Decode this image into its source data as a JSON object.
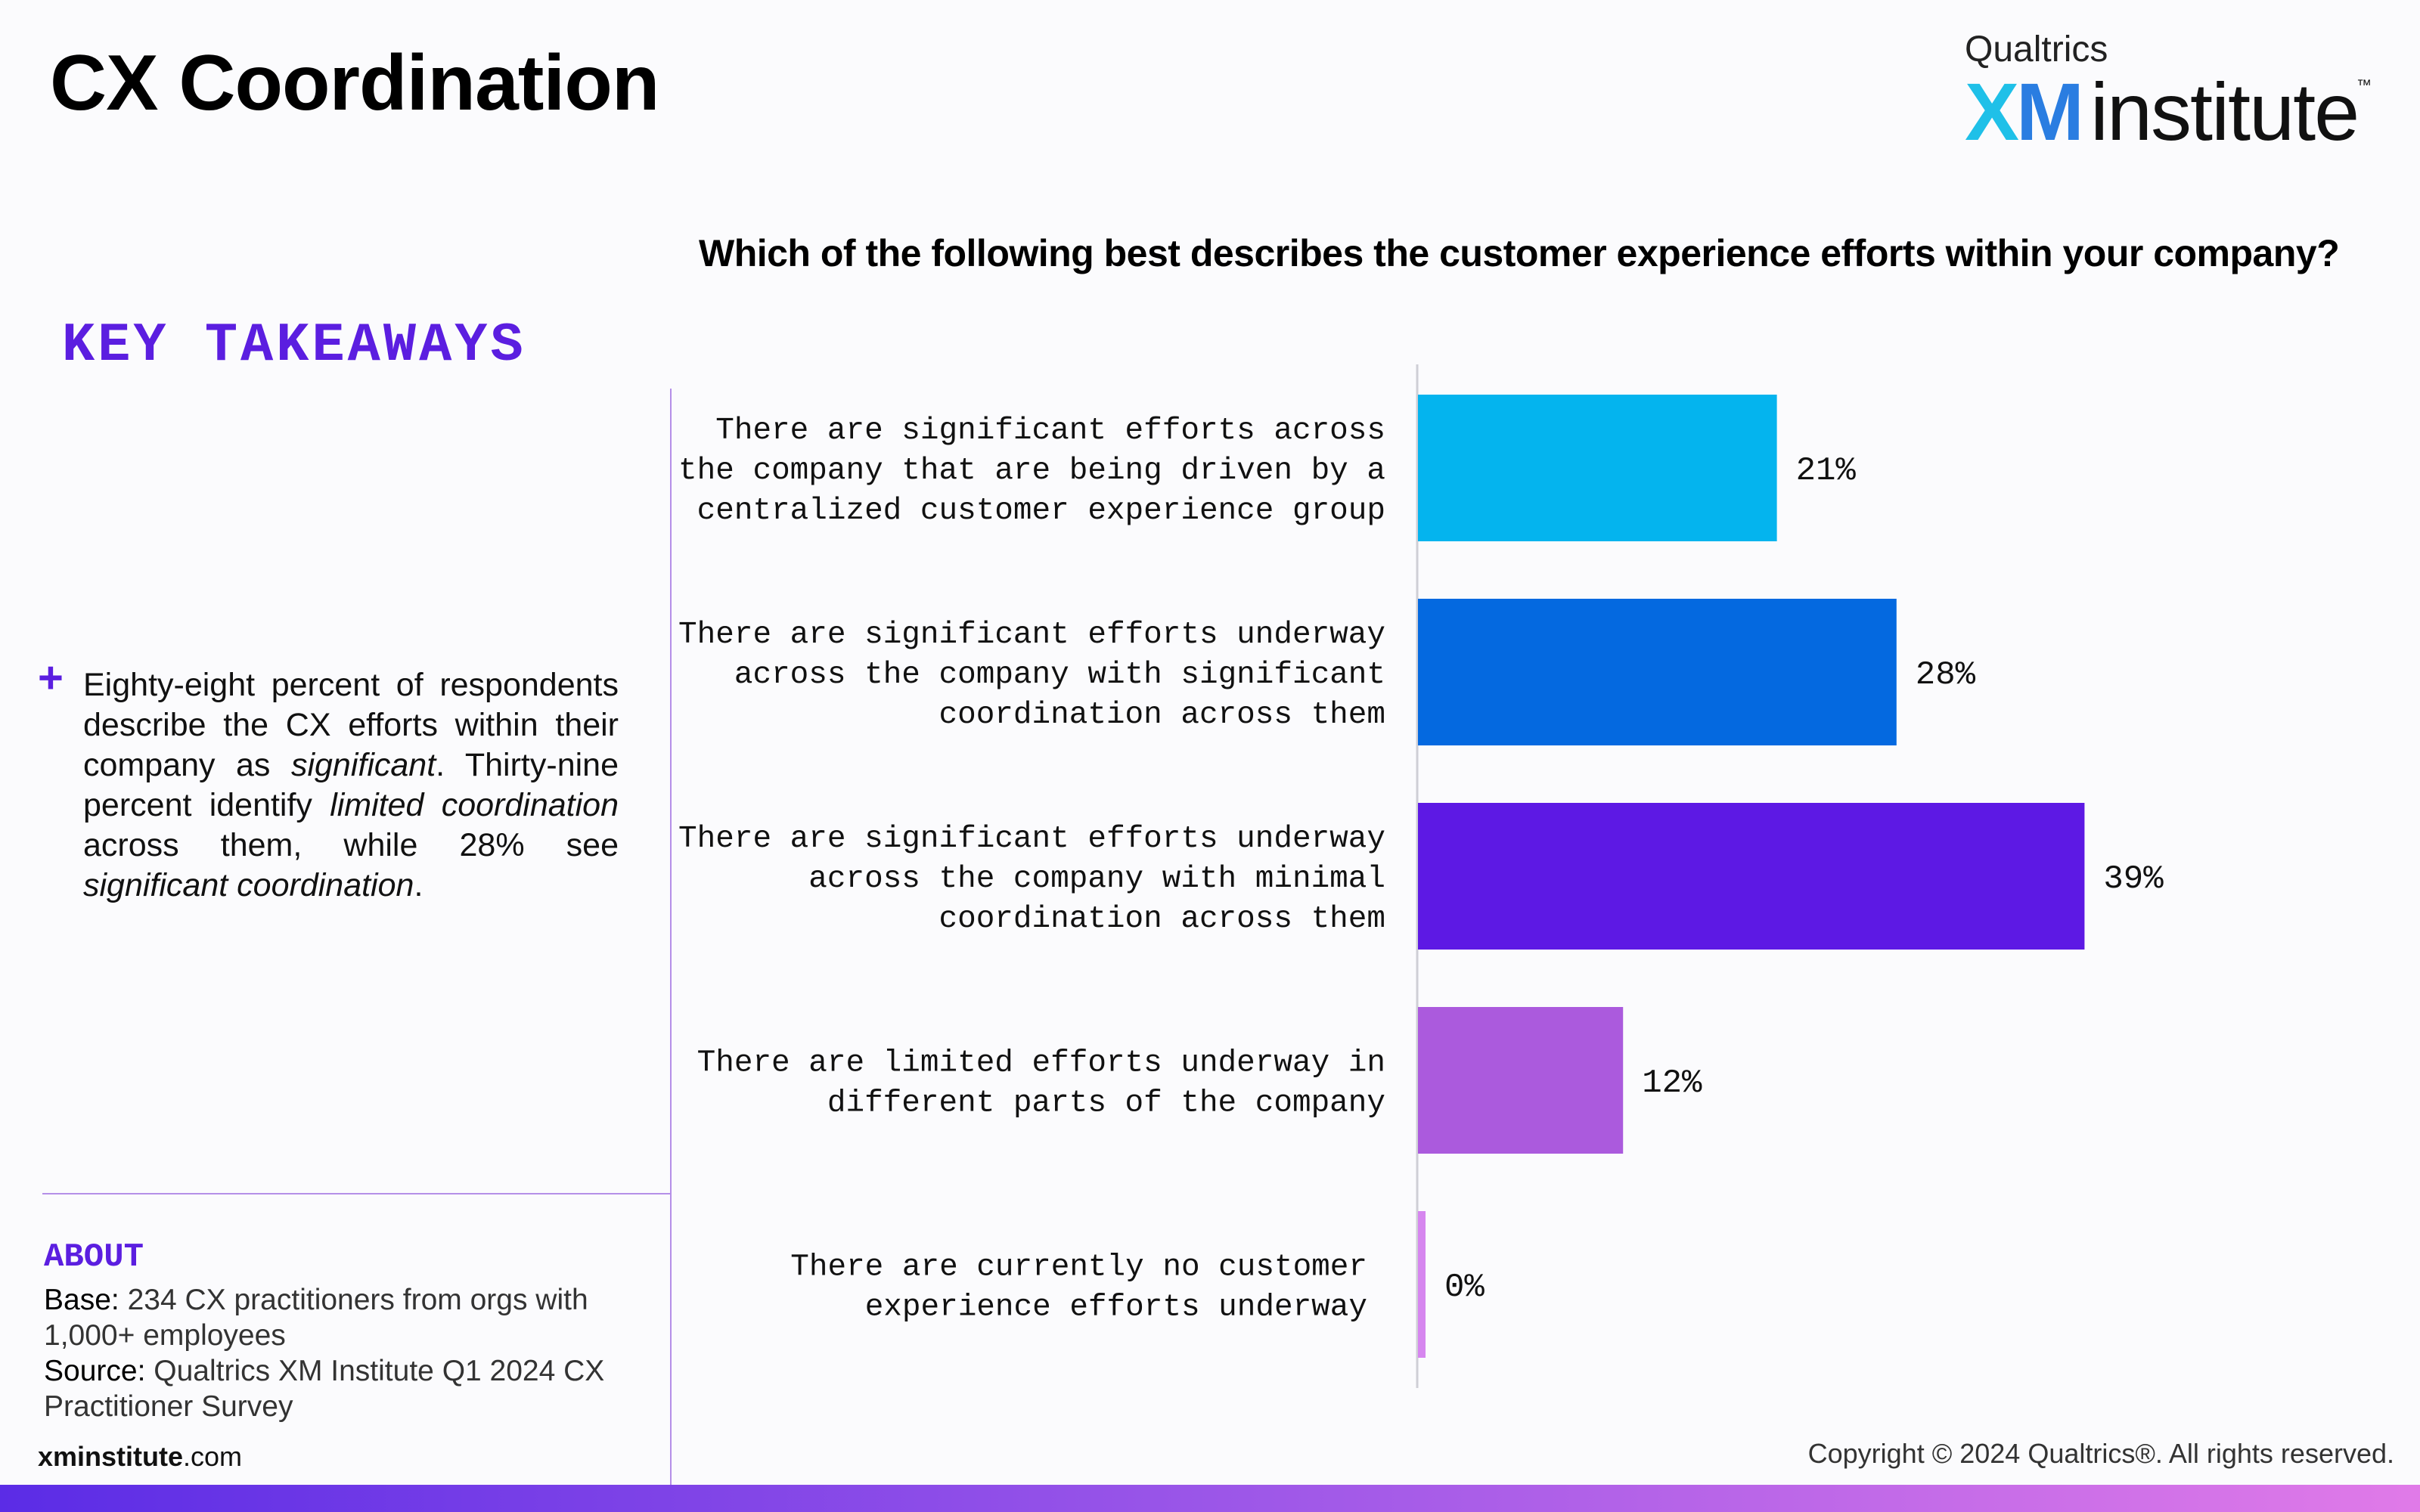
{
  "header": {
    "title": "CX Coordination",
    "logo": {
      "brand": "Qualtrics",
      "xm_x": "X",
      "xm_m": "M",
      "word": "institute",
      "tm": "™"
    }
  },
  "key_takeaways": {
    "heading": "KEY TAKEAWAYS",
    "bullet_symbol": "+",
    "text_1": "Eighty-eight percent of respondents describe the CX efforts within their company as ",
    "em_1": "significant",
    "text_2": ". Thirty-nine percent identify ",
    "em_2": "limited coordination",
    "text_3": " across them, while 28% see ",
    "em_3": "significant coordination",
    "text_4": "."
  },
  "about": {
    "heading": "ABOUT",
    "base_label": "Base:",
    "base_text": " 234 CX practitioners from orgs with 1,000+ employees",
    "source_label": "Source:",
    "source_text": " Qualtrics XM Institute Q1 2024 CX Practitioner Survey"
  },
  "footer": {
    "site_bold": "xminstitute",
    "site_rest": ".com",
    "copyright": "Copyright © 2024 Qualtrics®. All rights reserved."
  },
  "chart_data": {
    "type": "bar",
    "orientation": "horizontal",
    "title": "Which of the following best describes the customer experience efforts within your company?",
    "categories": [
      [
        "There are significant efforts across",
        "the company that are being driven by a",
        "centralized customer experience group"
      ],
      [
        "There are significant efforts underway",
        "across the company with significant",
        "coordination across them"
      ],
      [
        "There are significant efforts underway",
        "across the company with minimal",
        "coordination across them"
      ],
      [
        "There are limited efforts underway in",
        "different parts of the company"
      ],
      [
        "There are currently no customer",
        "experience efforts underway"
      ]
    ],
    "values": [
      21,
      28,
      39,
      12,
      0
    ],
    "value_labels": [
      "21%",
      "28%",
      "39%",
      "12%",
      "0%"
    ],
    "colors": [
      "#04b4ee",
      "#0469e0",
      "#5d19e4",
      "#ab5add",
      "#d686ef"
    ],
    "xlim": [
      0,
      100
    ],
    "grid": false,
    "legend": "none"
  }
}
